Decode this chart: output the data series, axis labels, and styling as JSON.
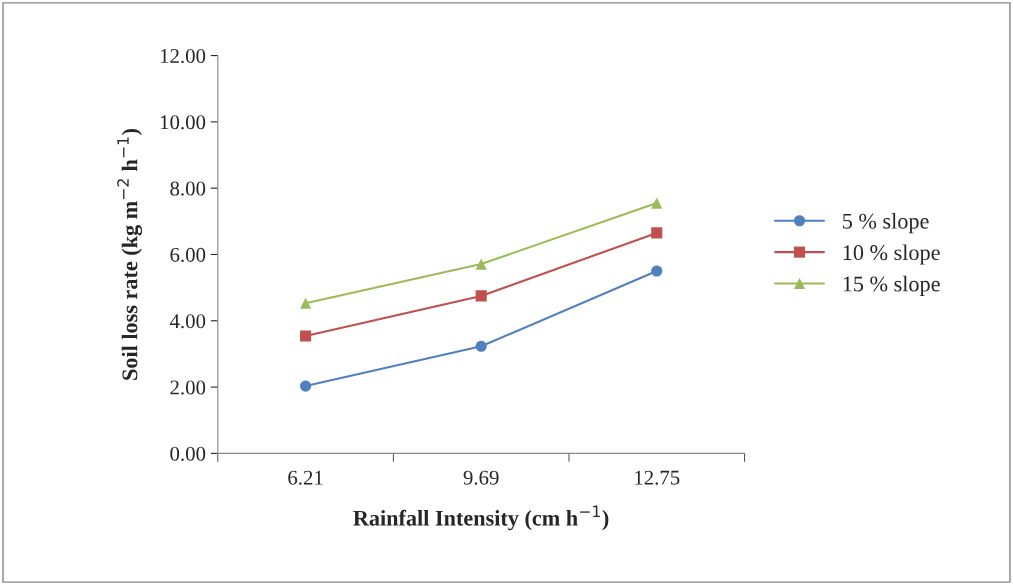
{
  "chart_data": {
    "type": "line",
    "xlabel": "Rainfall Intensity (cm h$^{−1}$)",
    "ylabel": "Soil loss rate (kg m$^{−2}$ h$^{−1}$)",
    "categories": [
      "6.21",
      "9.69",
      "12.75"
    ],
    "series": [
      {
        "name": "5 % slope",
        "color": "#4f81bd",
        "marker": "circle",
        "values": [
          2.03,
          3.23,
          5.5
        ]
      },
      {
        "name": "10 % slope",
        "color": "#c0504d",
        "marker": "square",
        "values": [
          3.54,
          4.75,
          6.65
        ]
      },
      {
        "name": "15 % slope",
        "color": "#9bbb59",
        "marker": "triangle",
        "values": [
          4.53,
          5.71,
          7.55
        ]
      }
    ],
    "ylim": [
      0,
      12
    ],
    "yticks": [
      {
        "value": 0,
        "label": "0.00"
      },
      {
        "value": 2,
        "label": "2.00"
      },
      {
        "value": 4,
        "label": "4.00"
      },
      {
        "value": 6,
        "label": "6.00"
      },
      {
        "value": 8,
        "label": "8.00"
      },
      {
        "value": 10,
        "label": "10.00"
      },
      {
        "value": 12,
        "label": "12.00"
      }
    ],
    "grid": false,
    "legend": "right",
    "line_style": "solid"
  }
}
